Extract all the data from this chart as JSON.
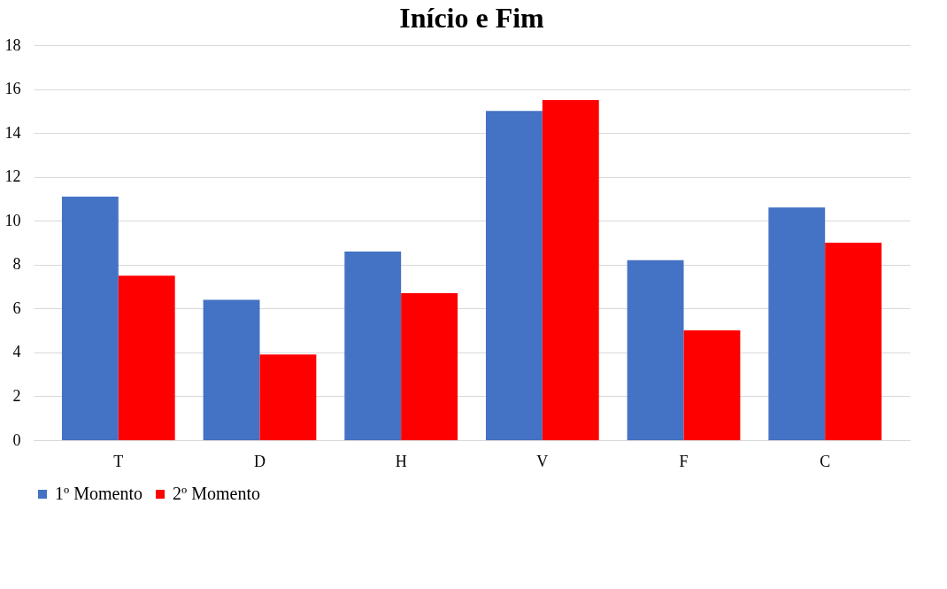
{
  "chart_data": {
    "type": "bar",
    "title": "Início e Fim",
    "categories": [
      "T",
      "D",
      "H",
      "V",
      "F",
      "C"
    ],
    "series": [
      {
        "name": "1º Momento",
        "color": "#4472c4",
        "values": [
          11.1,
          6.4,
          8.6,
          15.0,
          8.2,
          10.6
        ]
      },
      {
        "name": "2º Momento",
        "color": "#ff0000",
        "values": [
          7.5,
          3.9,
          6.7,
          15.5,
          5.0,
          9.0
        ]
      }
    ],
    "ylim": [
      0,
      18
    ],
    "yticks": [
      0,
      2,
      4,
      6,
      8,
      10,
      12,
      14,
      16,
      18
    ],
    "grid": "y",
    "legend": "bottom"
  }
}
